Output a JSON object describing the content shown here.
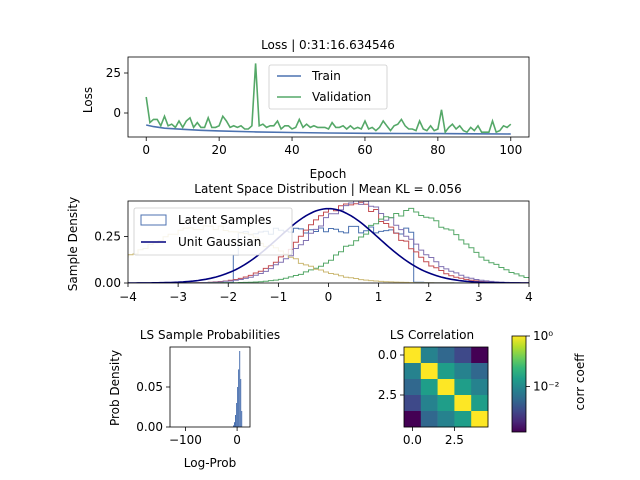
{
  "chart_data": [
    {
      "type": "line",
      "title": "Loss | 0:31:16.634546",
      "xlabel": "Epoch",
      "ylabel": "Loss",
      "xlim": [
        -5,
        105
      ],
      "ylim": [
        -15,
        35
      ],
      "xticks": [
        0,
        20,
        40,
        60,
        80,
        100
      ],
      "xtick_labels": [
        "0",
        "20",
        "40",
        "60",
        "80",
        "100"
      ],
      "yticks": [
        0,
        25
      ],
      "ytick_labels": [
        "0",
        "25"
      ],
      "legend_position": "top-center",
      "series": [
        {
          "name": "Train",
          "color": "#4c72b0",
          "x": [
            0,
            2,
            5,
            10,
            15,
            20,
            30,
            40,
            50,
            60,
            70,
            80,
            90,
            100
          ],
          "y": [
            -7.5,
            -8.5,
            -9.5,
            -10.2,
            -10.8,
            -11.2,
            -11.8,
            -12.2,
            -12.5,
            -12.7,
            -12.8,
            -12.9,
            -13.0,
            -13.1
          ]
        },
        {
          "name": "Validation",
          "color": "#55a868",
          "x": [
            0,
            1,
            2,
            3,
            4,
            5,
            6,
            7,
            8,
            9,
            10,
            11,
            12,
            13,
            14,
            15,
            16,
            17,
            18,
            19,
            20,
            21,
            22,
            23,
            24,
            25,
            26,
            27,
            28,
            29,
            30,
            31,
            32,
            33,
            34,
            35,
            36,
            37,
            38,
            39,
            40,
            41,
            42,
            43,
            44,
            45,
            46,
            47,
            48,
            49,
            50,
            51,
            52,
            53,
            54,
            55,
            56,
            57,
            58,
            59,
            60,
            61,
            62,
            63,
            64,
            65,
            66,
            67,
            68,
            69,
            70,
            71,
            72,
            73,
            74,
            75,
            76,
            77,
            78,
            79,
            80,
            81,
            82,
            83,
            84,
            85,
            86,
            87,
            88,
            89,
            90,
            91,
            92,
            93,
            94,
            95,
            96,
            97,
            98,
            99,
            100
          ],
          "y": [
            10,
            -6,
            -4,
            -4,
            -8,
            -2,
            -8,
            -7,
            -9,
            -5,
            -9,
            -5,
            -3,
            -9,
            -6,
            -9,
            -9,
            -3,
            -9,
            -9,
            -8,
            -2,
            -5,
            -9,
            -8,
            -9,
            -8,
            -10,
            -10,
            -8,
            31,
            -8,
            -7,
            -9,
            -8,
            -8,
            -5,
            -10,
            -8,
            -8,
            -10,
            -9,
            -4,
            -9,
            -7,
            -9,
            -8,
            -9,
            -9,
            -9,
            -10,
            -6,
            -9,
            -9,
            -8,
            -10,
            -8,
            -10,
            -9,
            -10,
            -5,
            -10,
            -9,
            -11,
            -9,
            -5,
            -8,
            -11,
            -8,
            -7,
            -4,
            -8,
            -10,
            -10,
            -11,
            -5,
            -10,
            -11,
            -8,
            -11,
            -10,
            2,
            -12,
            -9,
            -7,
            -10,
            -8,
            -11,
            -12,
            -9,
            -11,
            -8,
            -12,
            -12,
            -12,
            -5,
            -12,
            -11,
            -8,
            -9,
            -7
          ]
        }
      ]
    },
    {
      "type": "area",
      "title": "Latent Space Distribution | Mean KL = 0.056",
      "xlabel": "",
      "ylabel": "Sample Density",
      "xlim": [
        -4,
        4
      ],
      "ylim": [
        0,
        0.44
      ],
      "xticks": [
        -4,
        -3,
        -2,
        -1,
        0,
        1,
        2,
        3,
        4
      ],
      "xtick_labels": [
        "−4",
        "−3",
        "−2",
        "−1",
        "0",
        "1",
        "2",
        "3",
        "4"
      ],
      "yticks": [
        0,
        0.25
      ],
      "ytick_labels": [
        "0.00",
        "0.25"
      ],
      "legend_position": "top-left",
      "legend": [
        "Latent Samples",
        "Unit Gaussian"
      ],
      "histograms": [
        {
          "color": "#4c72b0",
          "mu": 0.0,
          "sigma": 0.95,
          "kind": "uniformish"
        },
        {
          "color": "#c44e52",
          "mu": 0.45,
          "sigma": 0.92
        },
        {
          "color": "#8172b2",
          "mu": 0.6,
          "sigma": 0.95
        },
        {
          "color": "#55a868",
          "mu": 1.6,
          "sigma": 1.05
        },
        {
          "color": "#ccb974",
          "mu": -2.4,
          "sigma": 1.3
        }
      ],
      "gaussian": {
        "color": "#00007f",
        "mu": 0,
        "sigma": 1
      }
    },
    {
      "type": "bar",
      "title": "LS Sample Probabilities",
      "xlabel": "Log-Prob",
      "ylabel": "Prob Density",
      "xlim": [
        -130,
        25
      ],
      "ylim": [
        0,
        0.1
      ],
      "xticks": [
        -100,
        0
      ],
      "xtick_labels": [
        "−100",
        "0"
      ],
      "yticks": [
        0,
        0.05
      ],
      "ytick_labels": [
        "0.00",
        "0.05"
      ],
      "color": "#4c72b0",
      "bins_x": [
        -8,
        -6,
        -4,
        -2,
        0,
        2,
        4,
        6,
        8
      ],
      "bins_y": [
        0.002,
        0.006,
        0.015,
        0.03,
        0.05,
        0.072,
        0.095,
        0.06,
        0.02
      ]
    },
    {
      "type": "heatmap",
      "title": "LS Correlation",
      "xlabel": "",
      "ylabel": "",
      "xticks": [
        0,
        2.5
      ],
      "xtick_labels": [
        "0.0",
        "2.5"
      ],
      "yticks": [
        0,
        2.5
      ],
      "ytick_labels": [
        "0.0",
        "2.5"
      ],
      "colorbar_label": "corr coeff",
      "colorbar_tick_labels": [
        "10⁰",
        "10⁻²"
      ],
      "colorbar_ticks_log": [
        0,
        -2
      ],
      "colorbar_log_range": [
        -3.8,
        0
      ],
      "matrix": [
        [
          0,
          -2.2,
          -2.4,
          -2.8,
          -3.8
        ],
        [
          -2.2,
          0,
          -1.6,
          -2.0,
          -2.6
        ],
        [
          -2.4,
          -1.6,
          0,
          -1.8,
          -2.2
        ],
        [
          -2.8,
          -2.0,
          -1.8,
          0,
          -1.6
        ],
        [
          -3.8,
          -2.6,
          -2.2,
          -1.6,
          0
        ]
      ]
    }
  ]
}
